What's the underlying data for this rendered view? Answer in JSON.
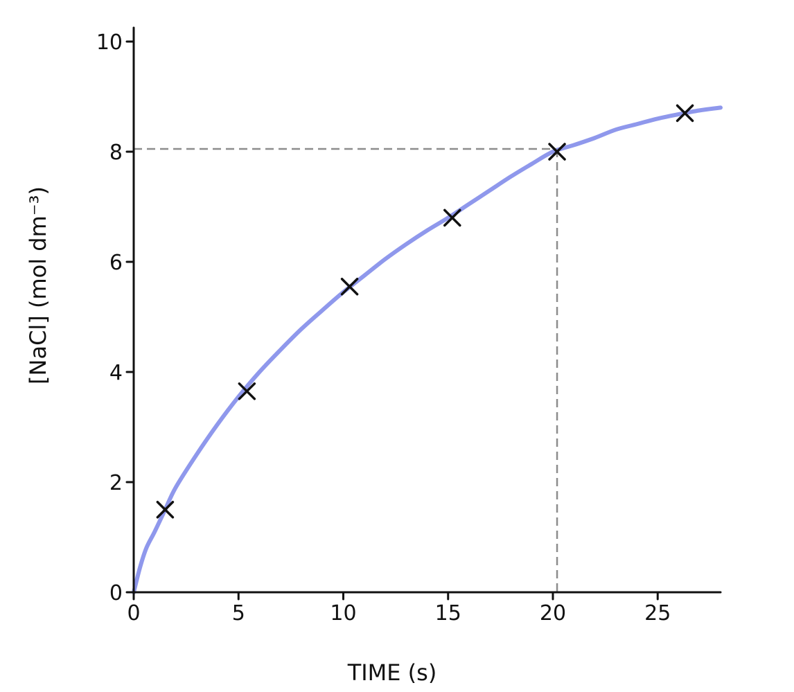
{
  "chart_data": {
    "type": "scatter",
    "xlabel": "TIME (s)",
    "ylabel": "[NaCl] (mol dm⁻³)",
    "xlim": [
      0,
      28
    ],
    "ylim": [
      0,
      10.3
    ],
    "xticks": [
      0,
      5,
      10,
      15,
      20,
      25
    ],
    "yticks": [
      0,
      2,
      4,
      6,
      8,
      10
    ],
    "grid": false,
    "series": [
      {
        "kind": "points",
        "x": [
          1.5,
          5.4,
          10.3,
          15.2,
          20.2,
          26.3
        ],
        "y": [
          1.5,
          3.65,
          5.55,
          6.8,
          8.0,
          8.7
        ]
      },
      {
        "kind": "fitted-curve",
        "color": "#8f98ec",
        "x": [
          0,
          0.3,
          0.6,
          1,
          1.5,
          2,
          3,
          4,
          5,
          6,
          7,
          8,
          9,
          10,
          11,
          12,
          13,
          14,
          15,
          16,
          17,
          18,
          19,
          20,
          21,
          22,
          23,
          24,
          25,
          26,
          27,
          28
        ],
        "y": [
          0,
          0.45,
          0.8,
          1.1,
          1.5,
          1.9,
          2.5,
          3.05,
          3.55,
          4.0,
          4.4,
          4.78,
          5.12,
          5.45,
          5.75,
          6.05,
          6.32,
          6.57,
          6.8,
          7.05,
          7.3,
          7.55,
          7.78,
          8.0,
          8.12,
          8.25,
          8.4,
          8.5,
          8.6,
          8.68,
          8.75,
          8.8
        ]
      }
    ],
    "guide": {
      "x": 20.2,
      "y": 8.05
    }
  }
}
